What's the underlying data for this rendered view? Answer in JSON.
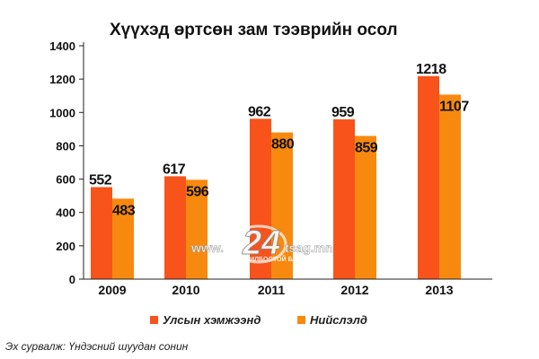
{
  "chart_data": {
    "type": "bar",
    "title": "Хүүхэд өртсөн зам тээврийн осол",
    "categories": [
      "2009",
      "2010",
      "2011",
      "2012",
      "2013"
    ],
    "series": [
      {
        "name": "Улсын хэмжээнд",
        "values": [
          552,
          617,
          962,
          959,
          1218
        ],
        "color": "#f7531b"
      },
      {
        "name": "Нийслэлд",
        "values": [
          483,
          596,
          880,
          859,
          1107
        ],
        "color": "#f7890f"
      }
    ],
    "yticks": [
      0,
      200,
      400,
      600,
      800,
      1000,
      1200,
      1400
    ],
    "ylim": [
      0,
      1400
    ],
    "grid": false,
    "legend_position": "bottom-center",
    "xlabel": "",
    "ylabel": ""
  },
  "source": "Эх сурвалж: Үндэсний шуудан сонин",
  "watermark": {
    "left": "www.",
    "logo": "24",
    "right": "tsag.mn",
    "sub": "ЦАГ ИЛБООТОЙ БАЙНА"
  }
}
